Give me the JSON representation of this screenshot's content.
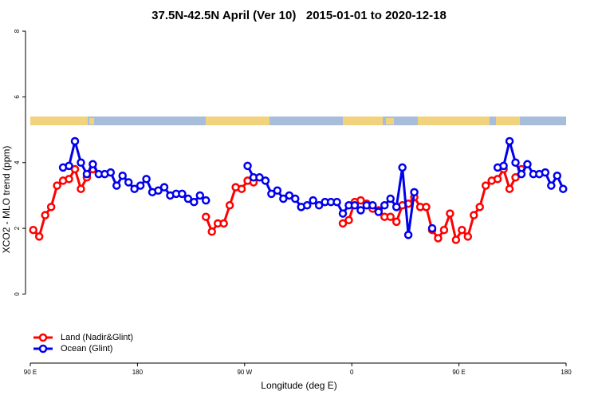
{
  "chart_data": {
    "type": "line",
    "title": "37.5N-42.5N April (Ver 10)   2015-01-01 to 2020-12-18",
    "x_label": "Longitude (deg E)",
    "y_label": "XCO2 - MLO trend (ppm)",
    "x": [
      92.5,
      97.5,
      102.5,
      107.5,
      112.5,
      117.5,
      122.5,
      127.5,
      132.5,
      137.5,
      142.5,
      147.5,
      152.5,
      157.5,
      162.5,
      167.5,
      172.5,
      177.5,
      182.5,
      187.5,
      192.5,
      197.5,
      202.5,
      207.5,
      212.5,
      217.5,
      222.5,
      227.5,
      232.5,
      237.5,
      242.5,
      247.5,
      252.5,
      257.5,
      262.5,
      267.5,
      272.5,
      277.5,
      282.5,
      287.5,
      292.5,
      297.5,
      302.5,
      307.5,
      312.5,
      317.5,
      322.5,
      327.5,
      332.5,
      337.5,
      342.5,
      347.5,
      352.5,
      357.5,
      362.5,
      367.5,
      372.5,
      377.5,
      382.5,
      387.5,
      392.5,
      397.5,
      402.5,
      407.5,
      412.5,
      417.5,
      422.5,
      427.5,
      432.5,
      437.5,
      442.5,
      447.5,
      452.5,
      457.5,
      462.5,
      467.5,
      472.5,
      477.5,
      482.5,
      487.5,
      492.5,
      497.5,
      502.5,
      507.5,
      512.5,
      517.5,
      522.5,
      527.5,
      532.5,
      537.5
    ],
    "series": [
      {
        "name": "Land (Nadir&Glint)",
        "color": "#ff0000",
        "values": [
          1.95,
          1.75,
          2.4,
          2.65,
          3.3,
          3.45,
          3.5,
          3.8,
          3.2,
          3.55,
          3.8,
          null,
          null,
          null,
          null,
          null,
          null,
          null,
          null,
          null,
          null,
          null,
          null,
          null,
          null,
          null,
          null,
          null,
          null,
          2.35,
          1.9,
          2.15,
          2.15,
          2.7,
          3.25,
          3.2,
          3.45,
          3.4,
          null,
          null,
          null,
          null,
          null,
          null,
          null,
          null,
          null,
          null,
          null,
          null,
          null,
          null,
          2.15,
          2.25,
          2.8,
          2.85,
          2.75,
          2.6,
          2.55,
          2.35,
          2.35,
          2.2,
          2.7,
          2.75,
          2.95,
          2.65,
          2.65,
          1.95,
          1.7,
          1.95,
          2.45,
          1.65,
          1.95,
          1.75,
          2.4,
          2.65,
          3.3,
          3.45,
          3.5,
          3.8,
          3.2,
          3.55,
          3.8,
          null,
          null,
          null,
          null,
          null,
          null,
          null
        ]
      },
      {
        "name": "Ocean (Glint)",
        "color": "#0000ee",
        "values": [
          null,
          null,
          null,
          null,
          null,
          3.85,
          3.9,
          4.65,
          4.0,
          3.65,
          3.95,
          3.65,
          3.65,
          3.7,
          3.3,
          3.6,
          3.4,
          3.2,
          3.3,
          3.5,
          3.1,
          3.15,
          3.25,
          3.0,
          3.05,
          3.05,
          2.9,
          2.8,
          3.0,
          2.85,
          null,
          null,
          null,
          null,
          null,
          null,
          3.9,
          3.55,
          3.55,
          3.45,
          3.05,
          3.15,
          2.9,
          3.0,
          2.9,
          2.65,
          2.7,
          2.85,
          2.7,
          2.8,
          2.8,
          2.8,
          2.45,
          2.7,
          2.7,
          2.55,
          2.7,
          2.7,
          2.5,
          2.7,
          2.9,
          2.65,
          3.85,
          1.8,
          3.1,
          null,
          null,
          2.0,
          null,
          null,
          null,
          null,
          null,
          null,
          null,
          null,
          null,
          null,
          3.85,
          3.9,
          4.65,
          4.0,
          3.65,
          3.95,
          3.65,
          3.65,
          3.7,
          3.3,
          3.6,
          3.2
        ]
      }
    ],
    "xlim": [
      90,
      540
    ],
    "xticks": [
      {
        "value": 90,
        "label": "90 E"
      },
      180,
      {
        "value": 270,
        "label": "90 W"
      },
      {
        "value": 360,
        "label": "0"
      },
      {
        "value": 450,
        "label": "90 E"
      },
      {
        "value": 540,
        "label": "180"
      }
    ],
    "ylim": [
      -2.1,
      8
    ],
    "yticks": [
      0,
      2,
      4,
      6,
      8
    ],
    "legend": "bottom-left"
  }
}
